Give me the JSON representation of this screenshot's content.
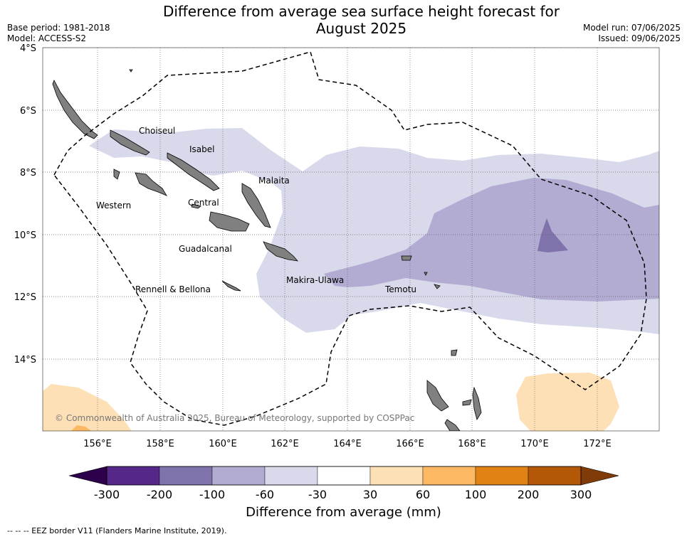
{
  "header": {
    "title_line1": "Difference from average sea surface height forecast for",
    "title_line2": "August 2025",
    "base_period": "Base period: 1981-2018",
    "model": "Model: ACCESS-S2",
    "model_run": "Model run: 07/06/2025",
    "issued": "Issued: 09/06/2025"
  },
  "map": {
    "lat_labels": [
      "4°S",
      "6°S",
      "8°S",
      "10°S",
      "12°S",
      "14°S"
    ],
    "lon_labels": [
      "156°E",
      "158°E",
      "160°E",
      "162°E",
      "164°E",
      "166°E",
      "168°E",
      "170°E",
      "172°E"
    ],
    "provinces": [
      "Choiseul",
      "Isabel",
      "Malaita",
      "Western",
      "Central",
      "Guadalcanal",
      "Makira-Ulawa",
      "Temotu",
      "Rennell & Bellona"
    ],
    "copyright": "© Commonwealth of Australia 2025, Bureau of Meteorology, supported by COSPPac",
    "colors": {
      "land": "#808080",
      "minus100_to_minus60": "#b2abd2",
      "minus200_to_minus100": "#8073ac",
      "minus60_to_minus30": "#d8daeb",
      "plus30_to_plus60": "#fee0b6",
      "plus60_to_plus100": "#fdb863"
    }
  },
  "colorbar": {
    "ticks": [
      "-300",
      "-200",
      "-100",
      "-60",
      "-30",
      "30",
      "60",
      "100",
      "200",
      "300"
    ],
    "colors": [
      "#542788",
      "#8073ac",
      "#b2abd2",
      "#d8daeb",
      "#ffffff",
      "#fee0b6",
      "#fdb863",
      "#e08214",
      "#b35806"
    ],
    "extend_low_color": "#2d004b",
    "extend_high_color": "#7f3b08",
    "label": "Difference from average (mm)"
  },
  "legend": {
    "eez_text": "--  --  -- EEZ border V11 (Flanders Marine Institute, 2019)."
  }
}
